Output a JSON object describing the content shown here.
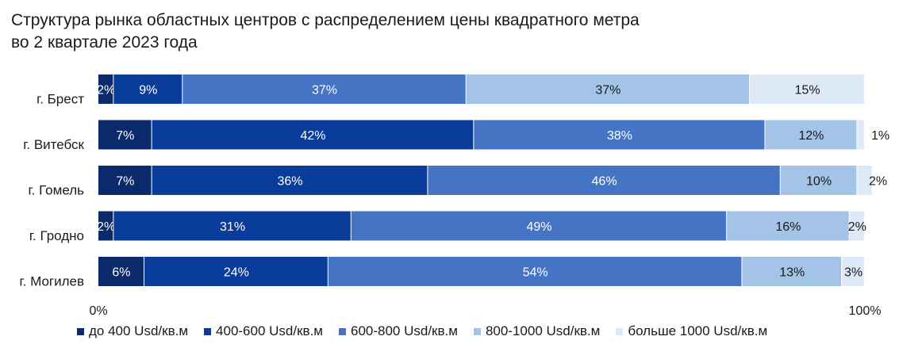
{
  "title": {
    "line1": "Структура рынка областных центров с распределением цены квадратного метра",
    "line2": "во 2 квартале 2023 года"
  },
  "chart_data": {
    "type": "bar",
    "orientation": "horizontal",
    "stacked": "percent",
    "categories": [
      "г. Брест",
      "г. Витебск",
      "г. Гомель",
      "г. Гродно",
      "г. Могилев"
    ],
    "series": [
      {
        "name": "до 400 Usd/кв.м",
        "color": "#0a2a6b",
        "values": [
          2,
          7,
          7,
          2,
          6
        ]
      },
      {
        "name": "400-600 Usd/кв.м",
        "color": "#0a3c9c",
        "values": [
          9,
          42,
          36,
          31,
          24
        ]
      },
      {
        "name": "600-800 Usd/кв.м",
        "color": "#4674c4",
        "values": [
          37,
          38,
          46,
          49,
          54
        ]
      },
      {
        "name": "800-1000 Usd/кв.м",
        "color": "#a3c4e6",
        "values": [
          37,
          12,
          10,
          16,
          13
        ]
      },
      {
        "name": "больше 1000 Usd/кв.м",
        "color": "#dde9f6",
        "values": [
          15,
          1,
          2,
          2,
          3
        ]
      }
    ],
    "xlim": [
      0,
      100
    ],
    "x_tick_labels": [
      "0%",
      "100%"
    ],
    "grid": false,
    "legend_position": "bottom"
  }
}
